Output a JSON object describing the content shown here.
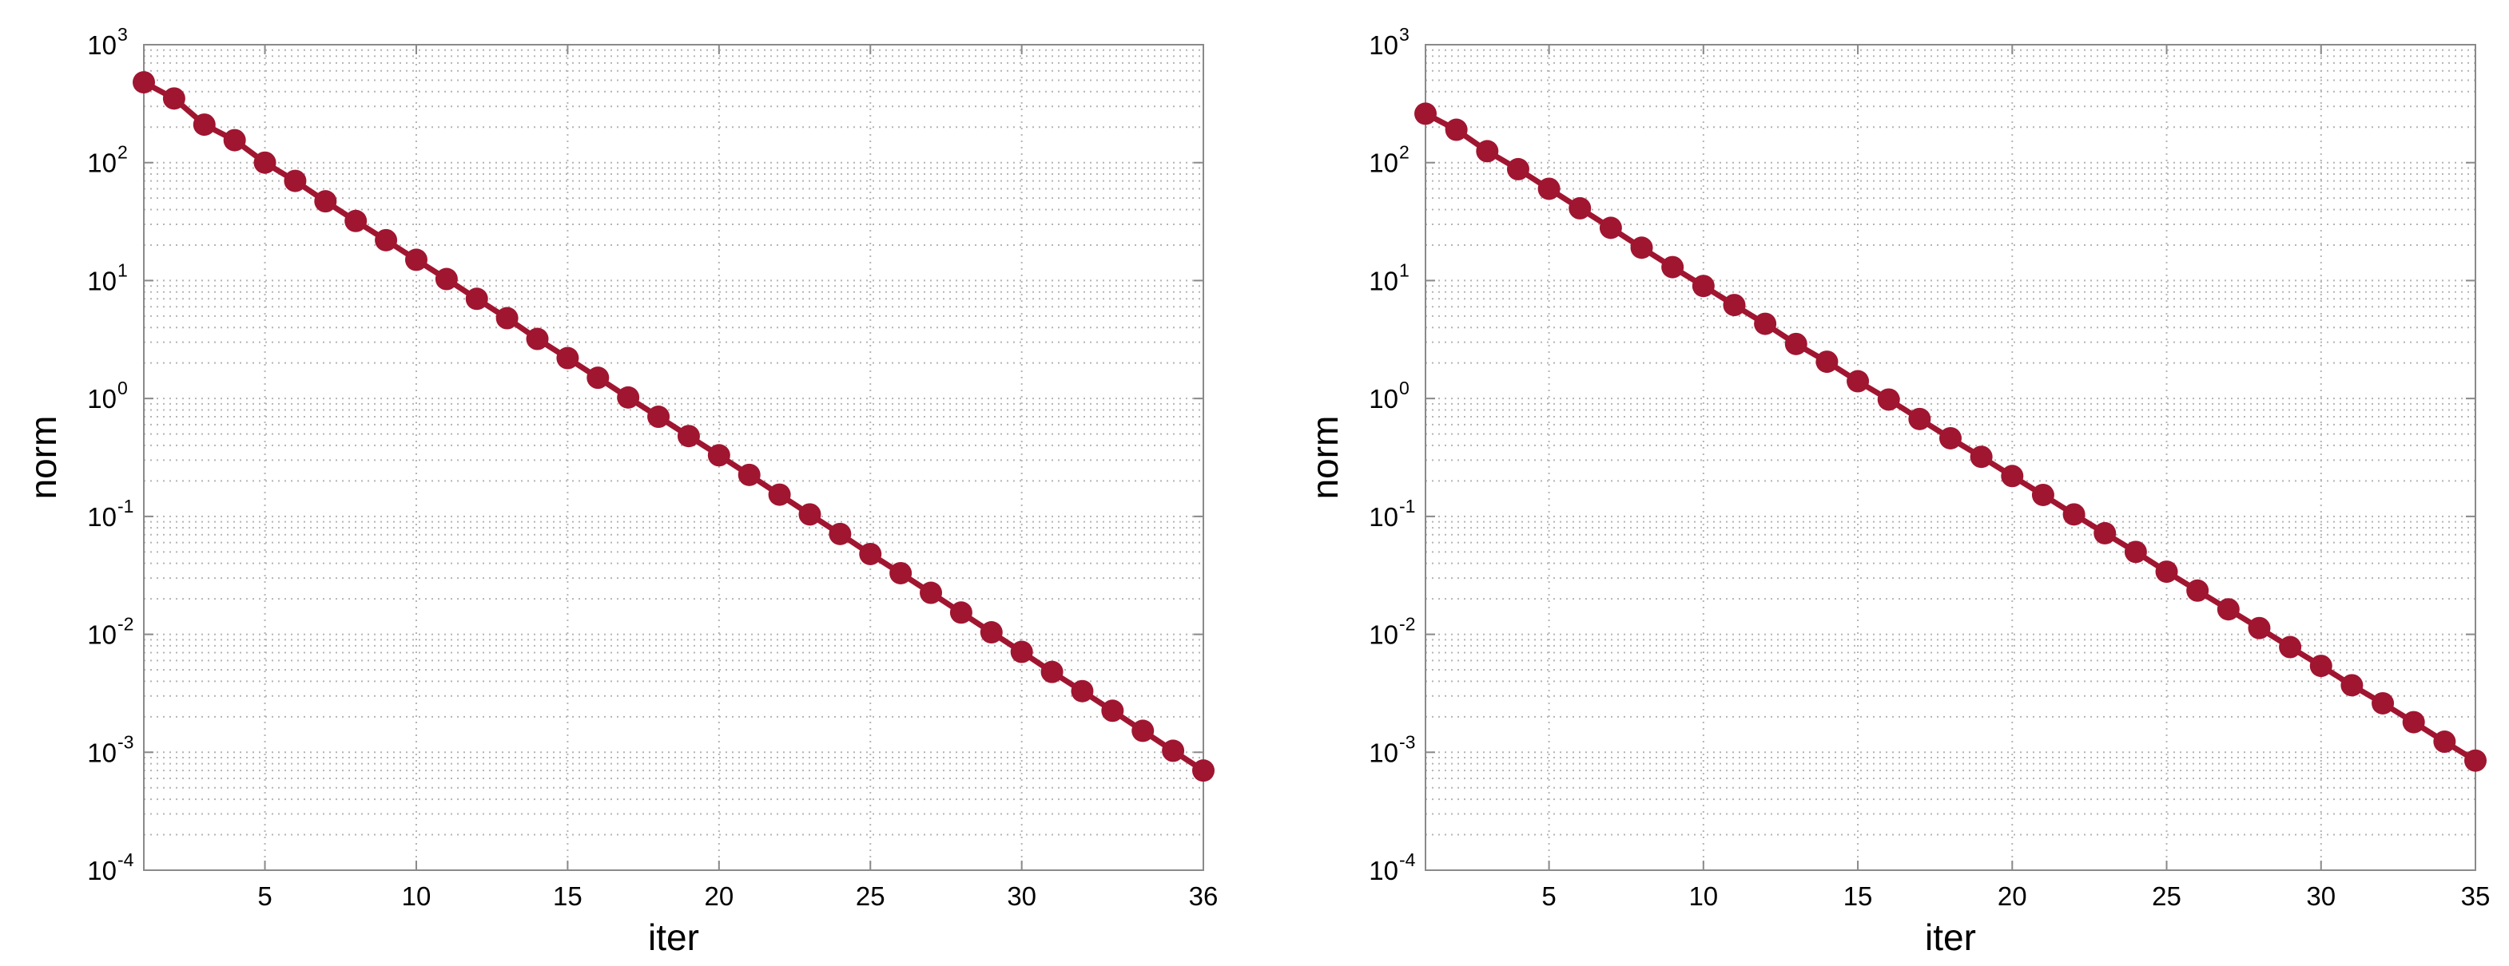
{
  "chart_data": [
    {
      "type": "line",
      "xlabel": "iter",
      "ylabel": "norm",
      "yscale": "log",
      "xlim": [
        1,
        36
      ],
      "ylim": [
        0.0001,
        1000
      ],
      "xticks": [
        "5",
        "10",
        "15",
        "20",
        "25",
        "30",
        "36"
      ],
      "xtick_values": [
        5,
        10,
        15,
        20,
        25,
        30,
        36
      ],
      "yticks": [
        {
          "base": "10",
          "exp": "-4"
        },
        {
          "base": "10",
          "exp": "-3"
        },
        {
          "base": "10",
          "exp": "-2"
        },
        {
          "base": "10",
          "exp": "-1"
        },
        {
          "base": "10",
          "exp": "0"
        },
        {
          "base": "10",
          "exp": "1"
        },
        {
          "base": "10",
          "exp": "2"
        },
        {
          "base": "10",
          "exp": "3"
        }
      ],
      "ytick_values": [
        0.0001,
        0.001,
        0.01,
        0.1,
        1,
        10,
        100,
        1000
      ],
      "grid": true,
      "series": [
        {
          "color": "#a01530",
          "marker": "circle",
          "x": [
            1,
            2,
            3,
            4,
            5,
            6,
            7,
            8,
            9,
            10,
            11,
            12,
            13,
            14,
            15,
            16,
            17,
            18,
            19,
            20,
            21,
            22,
            23,
            24,
            25,
            26,
            27,
            28,
            29,
            30,
            31,
            32,
            33,
            34,
            35,
            36
          ],
          "y": [
            480,
            350,
            210,
            155,
            100,
            70,
            47,
            32,
            22,
            15,
            10.3,
            7,
            4.8,
            3.2,
            2.2,
            1.5,
            1.02,
            0.7,
            0.48,
            0.33,
            0.225,
            0.153,
            0.104,
            0.071,
            0.048,
            0.033,
            0.0225,
            0.0153,
            0.0104,
            0.0071,
            0.0048,
            0.0033,
            0.00225,
            0.00152,
            0.00103,
            0.0007
          ]
        }
      ]
    },
    {
      "type": "line",
      "xlabel": "iter",
      "ylabel": "norm",
      "yscale": "log",
      "xlim": [
        1,
        35
      ],
      "ylim": [
        0.0001,
        1000
      ],
      "xticks": [
        "5",
        "10",
        "15",
        "20",
        "25",
        "30",
        "35"
      ],
      "xtick_values": [
        5,
        10,
        15,
        20,
        25,
        30,
        35
      ],
      "yticks": [
        {
          "base": "10",
          "exp": "-4"
        },
        {
          "base": "10",
          "exp": "-3"
        },
        {
          "base": "10",
          "exp": "-2"
        },
        {
          "base": "10",
          "exp": "-1"
        },
        {
          "base": "10",
          "exp": "0"
        },
        {
          "base": "10",
          "exp": "1"
        },
        {
          "base": "10",
          "exp": "2"
        },
        {
          "base": "10",
          "exp": "3"
        }
      ],
      "ytick_values": [
        0.0001,
        0.001,
        0.01,
        0.1,
        1,
        10,
        100,
        1000
      ],
      "grid": true,
      "series": [
        {
          "color": "#a01530",
          "marker": "circle",
          "x": [
            1,
            2,
            3,
            4,
            5,
            6,
            7,
            8,
            9,
            10,
            11,
            12,
            13,
            14,
            15,
            16,
            17,
            18,
            19,
            20,
            21,
            22,
            23,
            24,
            25,
            26,
            27,
            28,
            29,
            30,
            31,
            32,
            33,
            34,
            35
          ],
          "y": [
            260,
            190,
            125,
            88,
            60,
            41,
            28,
            19,
            13,
            9,
            6.2,
            4.3,
            2.9,
            2.05,
            1.4,
            0.98,
            0.67,
            0.46,
            0.32,
            0.22,
            0.152,
            0.104,
            0.072,
            0.05,
            0.034,
            0.0235,
            0.0163,
            0.0113,
            0.0078,
            0.0054,
            0.0037,
            0.0026,
            0.0018,
            0.00123,
            0.00085
          ]
        }
      ]
    }
  ]
}
